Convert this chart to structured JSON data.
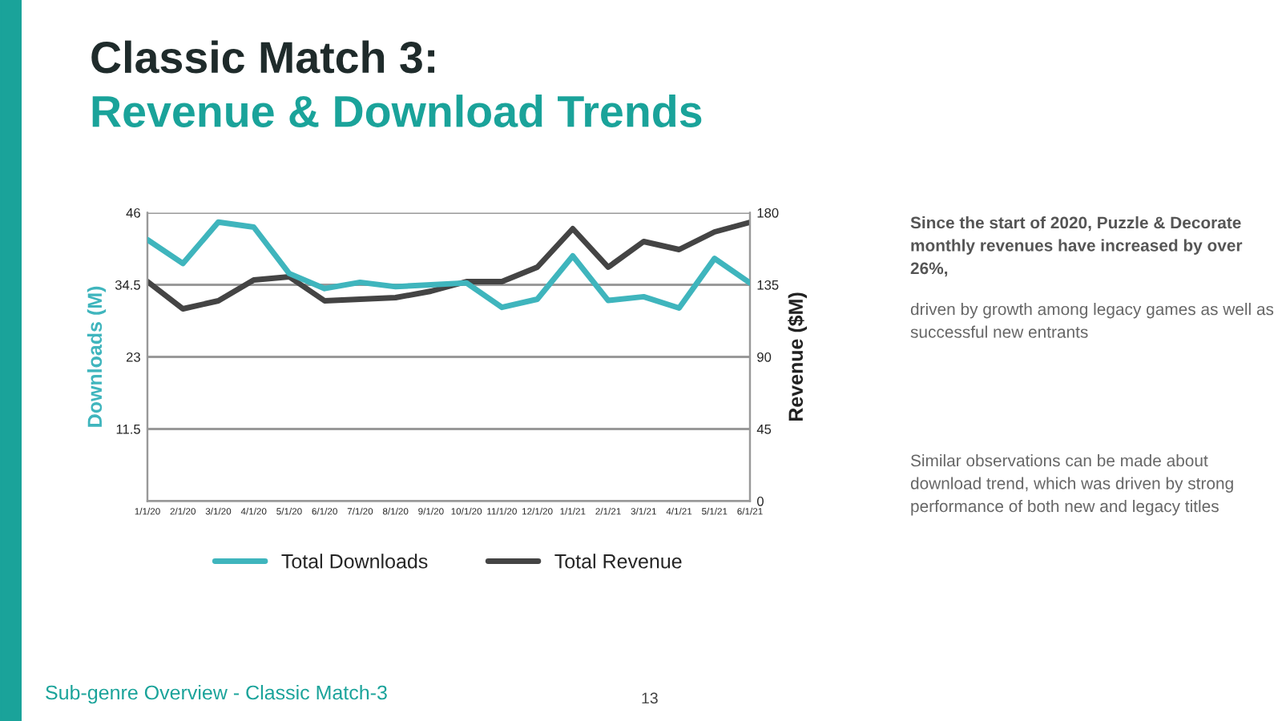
{
  "chart_data": {
    "type": "line",
    "title": "Classic Match 3:",
    "subtitle": "Revenue & Download Trends",
    "ylabel": "Downloads (M)",
    "y2label": "Revenue ($M)",
    "categories": [
      "1/1/20",
      "2/1/20",
      "3/1/20",
      "4/1/20",
      "5/1/20",
      "6/1/20",
      "7/1/20",
      "8/1/20",
      "9/1/20",
      "10/1/20",
      "11/1/20",
      "12/1/20",
      "1/1/21",
      "2/1/21",
      "3/1/21",
      "4/1/21",
      "5/1/21",
      "6/1/21"
    ],
    "series": [
      {
        "name": "Total Downloads",
        "color": "#3fb5bd",
        "values": [
          41.7,
          37.9,
          44.5,
          43.7,
          36.3,
          33.9,
          34.9,
          34.2,
          34.5,
          34.8,
          30.9,
          32.2,
          39.1,
          32.0,
          32.6,
          30.8,
          38.7,
          34.8
        ]
      },
      {
        "name": "Total Revenue",
        "color": "#444444",
        "axis": "y2",
        "values": [
          137,
          120,
          125,
          138,
          140,
          125,
          126,
          127,
          131,
          137,
          137,
          146,
          170,
          146,
          162,
          157,
          168,
          174
        ]
      }
    ],
    "ylim": [
      0,
      46
    ],
    "yticks": [
      11.5,
      23,
      34.5,
      46
    ],
    "y2lim": [
      0,
      180
    ],
    "y2ticks": [
      0,
      45,
      90,
      135,
      180
    ],
    "grid": "y",
    "legend": "bottom",
    "line_style": "solid",
    "marker": "none",
    "annotations": [
      "Since the start of 2020, Puzzle & Decorate monthly revenues have increased by over 26%,",
      "driven by growth among legacy games as well as successful new entrants",
      "Similar observations can be made about download trend, which was driven by strong performance of both new and legacy titles",
      "Sub-genre Overview - Classic Match-3",
      "13"
    ]
  }
}
